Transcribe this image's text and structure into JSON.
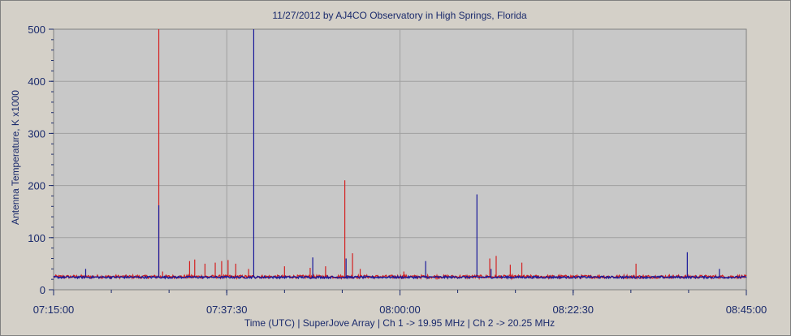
{
  "chart_data": {
    "type": "line",
    "title": "11/27/2012  by  AJ4CO Observatory  in  High Springs, Florida",
    "xlabel": "Time (UTC)  |  SuperJove Array  |  Ch 1 -> 19.95 MHz  |  Ch 2 -> 20.25 MHz",
    "ylabel": "Antenna Temperature, K x1000",
    "ylim": [
      0,
      500
    ],
    "y_ticks": [
      "0",
      "100",
      "200",
      "300",
      "400",
      "500"
    ],
    "x_range_seconds": [
      0,
      5400
    ],
    "x_ticks": [
      "07:15:00",
      "07:37:30",
      "08:00:00",
      "08:22:30",
      "08:45:00"
    ],
    "grid": true,
    "colors": {
      "ch1": "#d42020",
      "ch2": "#1a1a9a",
      "grid": "#a0a0a0",
      "plot_bg": "#c8c8c8",
      "text": "#1a2a6c"
    },
    "series": [
      {
        "channel": "ch1",
        "baseline": 25,
        "noise": 3,
        "spikes": [
          {
            "t": 820,
            "v": 500
          },
          {
            "t": 850,
            "v": 35
          },
          {
            "t": 1060,
            "v": 55
          },
          {
            "t": 1100,
            "v": 58
          },
          {
            "t": 1180,
            "v": 50
          },
          {
            "t": 1260,
            "v": 52
          },
          {
            "t": 1310,
            "v": 55
          },
          {
            "t": 1360,
            "v": 57
          },
          {
            "t": 1420,
            "v": 50
          },
          {
            "t": 1520,
            "v": 40
          },
          {
            "t": 1800,
            "v": 45
          },
          {
            "t": 2000,
            "v": 42
          },
          {
            "t": 2120,
            "v": 45
          },
          {
            "t": 2270,
            "v": 210
          },
          {
            "t": 2330,
            "v": 70
          },
          {
            "t": 2390,
            "v": 40
          },
          {
            "t": 2730,
            "v": 35
          },
          {
            "t": 3400,
            "v": 60
          },
          {
            "t": 3450,
            "v": 65
          },
          {
            "t": 3560,
            "v": 48
          },
          {
            "t": 3650,
            "v": 52
          },
          {
            "t": 4540,
            "v": 50
          },
          {
            "t": 4800,
            "v": 30
          }
        ]
      },
      {
        "channel": "ch2",
        "baseline": 24,
        "noise": 2,
        "spikes": [
          {
            "t": 820,
            "v": 162
          },
          {
            "t": 1560,
            "v": 500
          },
          {
            "t": 2020,
            "v": 62
          },
          {
            "t": 2280,
            "v": 60
          },
          {
            "t": 2900,
            "v": 55
          },
          {
            "t": 3300,
            "v": 183
          },
          {
            "t": 3410,
            "v": 40
          },
          {
            "t": 4940,
            "v": 72
          },
          {
            "t": 5190,
            "v": 40
          },
          {
            "t": 250,
            "v": 40
          }
        ]
      }
    ]
  }
}
